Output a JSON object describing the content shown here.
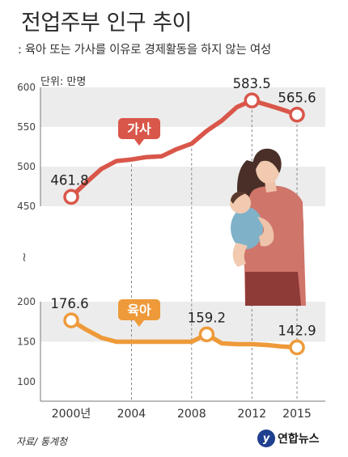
{
  "header": {
    "title": "전업주부 인구 추이",
    "subtitle": ": 육아 또는 가사를 이유로 경제활동을 하지 않는 여성",
    "unit": "단위: 만명"
  },
  "footer": {
    "source": "자료/ 통계청",
    "logo_text": "연합뉴스",
    "logo_mark": "y"
  },
  "colors": {
    "housework": "#d9564a",
    "childcare": "#ee9a3a",
    "band": "#ececec"
  },
  "chart_data": {
    "type": "line",
    "x": [
      2000,
      2001,
      2002,
      2003,
      2004,
      2005,
      2006,
      2007,
      2008,
      2009,
      2010,
      2011,
      2012,
      2013,
      2014,
      2015
    ],
    "x_tick_labels": [
      {
        "x": 2000,
        "label": "2000년"
      },
      {
        "x": 2004,
        "label": "2004"
      },
      {
        "x": 2008,
        "label": "2008"
      },
      {
        "x": 2012,
        "label": "2012"
      },
      {
        "x": 2015,
        "label": "2015"
      }
    ],
    "axis_break": "≀",
    "upper_axis": {
      "ticks": [
        450,
        500,
        550,
        600
      ],
      "ylim": [
        450,
        600
      ]
    },
    "lower_axis": {
      "ticks": [
        100,
        150,
        200
      ],
      "ylim": [
        100,
        200
      ]
    },
    "series": [
      {
        "name": "가사",
        "axis": "upper",
        "values": [
          461.8,
          480,
          497,
          507,
          509,
          512,
          513,
          522,
          529,
          545,
          558,
          575,
          583.5,
          578,
          572,
          565.6
        ],
        "labels": [
          {
            "x": 2000,
            "text": "461.8"
          },
          {
            "x": 2012,
            "text": "583.5"
          },
          {
            "x": 2015,
            "text": "565.6"
          }
        ]
      },
      {
        "name": "육아",
        "axis": "lower",
        "values": [
          176.6,
          165,
          155,
          150,
          150,
          150,
          150,
          150,
          150,
          159.2,
          148,
          147,
          147,
          146,
          144,
          142.9
        ],
        "labels": [
          {
            "x": 2000,
            "text": "176.6"
          },
          {
            "x": 2009,
            "text": "159.2"
          },
          {
            "x": 2015,
            "text": "142.9"
          }
        ]
      }
    ]
  }
}
